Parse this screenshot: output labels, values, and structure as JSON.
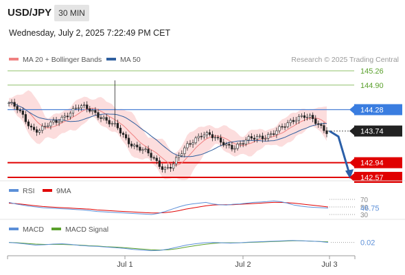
{
  "header": {
    "symbol": "USD/JPY",
    "timeframe": "30 MIN",
    "datetime": "Wednesday, July 2, 2025 7:22:49 PM CET"
  },
  "chart_data": [
    {
      "type": "candlestick",
      "legend": [
        {
          "label": "MA 20 + Bollinger Bands",
          "color": "#f08080"
        },
        {
          "label": "MA 50",
          "color": "#2f5f9f"
        }
      ],
      "credit": "Research © 2025 Trading Central",
      "ylim": [
        142.5,
        145.4
      ],
      "last_price": 143.74,
      "levels": [
        {
          "label": "145.26",
          "value": 145.26,
          "color": "#8fc06a",
          "kind": "resistance"
        },
        {
          "label": "144.90",
          "value": 144.9,
          "color": "#8fc06a",
          "kind": "resistance"
        },
        {
          "label": "144.28",
          "value": 144.28,
          "color": "#4a7fd4",
          "kind": "pivot"
        },
        {
          "label": "142.94",
          "value": 142.94,
          "color": "#e00000",
          "kind": "target"
        },
        {
          "label": "142.57",
          "value": 142.57,
          "color": "#e00000",
          "kind": "target"
        }
      ],
      "price_tag": {
        "label": "143.74",
        "value": 143.74
      },
      "projection": [
        [
          143.74
        ],
        [
          143.6
        ],
        [
          142.6
        ]
      ],
      "closes": [
        144.45,
        144.3,
        144.05,
        143.8,
        143.78,
        143.88,
        143.95,
        144.1,
        144.25,
        144.35,
        144.3,
        144.22,
        144.1,
        143.95,
        143.8,
        143.55,
        143.4,
        143.3,
        143.15,
        142.95,
        142.8,
        142.88,
        143.1,
        143.35,
        143.55,
        143.7,
        143.62,
        143.48,
        143.4,
        143.35,
        143.42,
        143.52,
        143.58,
        143.62,
        143.68,
        143.78,
        143.92,
        144.08,
        144.15,
        144.05,
        143.85,
        143.74
      ]
    },
    {
      "type": "line",
      "name": "RSI panel",
      "legend": [
        {
          "label": "RSI",
          "color": "#5b8fd8"
        },
        {
          "label": "9MA",
          "color": "#e00000"
        }
      ],
      "ylim": [
        30,
        70
      ],
      "gridlines": [
        {
          "label": "70",
          "value": 70
        },
        {
          "label": "50",
          "value": 50
        },
        {
          "label": "30",
          "value": 30
        }
      ],
      "value_label": "46.75",
      "rsi": [
        62,
        58,
        55,
        52,
        50,
        48,
        47,
        46,
        45,
        44,
        43,
        42,
        40,
        38,
        37,
        36,
        35,
        34,
        33,
        32,
        31,
        30,
        33,
        38,
        44,
        50,
        55,
        58,
        60,
        62,
        58,
        56,
        55,
        57,
        58,
        60,
        62,
        63,
        64,
        66,
        64,
        60,
        55,
        52,
        50,
        49,
        48,
        47
      ],
      "ma9": [
        60,
        59,
        57,
        55,
        53,
        51,
        50,
        49,
        48,
        47,
        46,
        45,
        44,
        42,
        41,
        40,
        39,
        38,
        37,
        36,
        35,
        34,
        34,
        35,
        37,
        40,
        44,
        47,
        50,
        53,
        55,
        56,
        56,
        56,
        57,
        58,
        59,
        60,
        61,
        62,
        62,
        61,
        60,
        58,
        56,
        54,
        52,
        50
      ]
    },
    {
      "type": "line",
      "name": "MACD panel",
      "legend": [
        {
          "label": "MACD",
          "color": "#5b8fd8"
        },
        {
          "label": "MACD Signal",
          "color": "#5aa02c"
        }
      ],
      "value_label": "0.02",
      "ylim": [
        -0.3,
        0.2
      ],
      "macd": [
        0.02,
        0.0,
        -0.03,
        -0.06,
        -0.05,
        -0.03,
        -0.02,
        -0.04,
        -0.07,
        -0.09,
        -0.1,
        -0.12,
        -0.14,
        -0.16,
        -0.19,
        -0.21,
        -0.23,
        -0.22,
        -0.18,
        -0.12,
        -0.06,
        -0.02,
        0.01,
        0.02,
        0.01,
        0.0,
        0.01,
        0.03,
        0.04,
        0.05,
        0.06,
        0.07,
        0.08,
        0.07,
        0.06,
        0.05,
        0.02
      ],
      "signal": [
        0.02,
        0.01,
        -0.01,
        -0.03,
        -0.04,
        -0.04,
        -0.04,
        -0.05,
        -0.06,
        -0.08,
        -0.09,
        -0.11,
        -0.12,
        -0.14,
        -0.16,
        -0.18,
        -0.2,
        -0.21,
        -0.2,
        -0.17,
        -0.12,
        -0.08,
        -0.04,
        -0.01,
        0.01,
        0.01,
        0.01,
        0.02,
        0.03,
        0.04,
        0.05,
        0.06,
        0.07,
        0.07,
        0.06,
        0.05,
        0.04
      ]
    }
  ],
  "x_axis": {
    "ticks": [
      "Jul 1",
      "Jul 2",
      "Jul 3"
    ]
  }
}
